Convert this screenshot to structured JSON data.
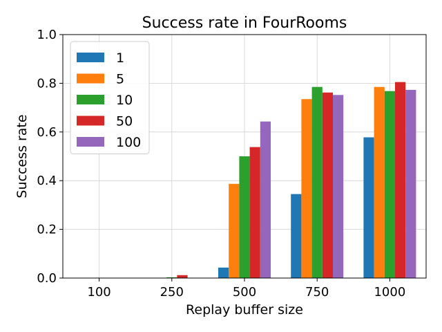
{
  "chart_data": {
    "type": "bar",
    "title": "Success rate in FourRooms",
    "xlabel": "Replay buffer size",
    "ylabel": "Success rate",
    "categories": [
      "100",
      "250",
      "500",
      "750",
      "1000"
    ],
    "ylim": [
      0.0,
      1.0
    ],
    "yticks": [
      "0.0",
      "0.2",
      "0.4",
      "0.6",
      "0.8",
      "1.0"
    ],
    "grid": true,
    "legend_position": "top-left",
    "series": [
      {
        "name": "1",
        "color": "#1f77b4",
        "values": [
          0.0,
          0.0,
          0.043,
          0.345,
          0.578
        ]
      },
      {
        "name": "5",
        "color": "#ff7f0e",
        "values": [
          0.0,
          0.0,
          0.387,
          0.735,
          0.785
        ]
      },
      {
        "name": "10",
        "color": "#2ca02c",
        "values": [
          0.0,
          0.003,
          0.5,
          0.785,
          0.768
        ]
      },
      {
        "name": "50",
        "color": "#d62728",
        "values": [
          0.0,
          0.012,
          0.538,
          0.762,
          0.805
        ]
      },
      {
        "name": "100",
        "color": "#9467bd",
        "values": [
          0.0,
          0.0,
          0.643,
          0.752,
          0.773
        ]
      }
    ]
  }
}
